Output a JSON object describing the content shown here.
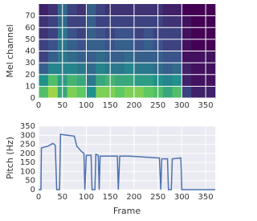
{
  "chart_data": [
    {
      "type": "heatmap",
      "ylabel": "Mel channel",
      "colormap": "viridis",
      "grid": true,
      "xbins": [
        0,
        20,
        40,
        60,
        80,
        100,
        120,
        140,
        160,
        180,
        200,
        220,
        240,
        260,
        280,
        300,
        320,
        340,
        360,
        370
      ],
      "ybins": [
        0,
        10,
        20,
        30,
        40,
        50,
        60,
        70,
        80
      ],
      "z": [
        [
          0.7,
          0.85,
          0.6,
          0.8,
          0.75,
          0.5,
          0.8,
          0.8,
          0.75,
          0.8,
          0.8,
          0.75,
          0.7,
          0.6,
          0.7,
          0.2,
          0.1,
          0.1,
          0.1
        ],
        [
          0.5,
          0.7,
          0.55,
          0.65,
          0.6,
          0.4,
          0.6,
          0.65,
          0.6,
          0.6,
          0.55,
          0.55,
          0.5,
          0.45,
          0.5,
          0.1,
          0.05,
          0.05,
          0.05
        ],
        [
          0.3,
          0.45,
          0.45,
          0.45,
          0.4,
          0.35,
          0.45,
          0.4,
          0.4,
          0.45,
          0.4,
          0.4,
          0.35,
          0.3,
          0.35,
          0.1,
          0.05,
          0.05,
          0.05
        ],
        [
          0.2,
          0.3,
          0.4,
          0.35,
          0.3,
          0.3,
          0.35,
          0.3,
          0.3,
          0.35,
          0.3,
          0.3,
          0.3,
          0.25,
          0.25,
          0.05,
          0.05,
          0.05,
          0.05
        ],
        [
          0.2,
          0.25,
          0.4,
          0.3,
          0.25,
          0.3,
          0.3,
          0.25,
          0.3,
          0.3,
          0.25,
          0.3,
          0.25,
          0.2,
          0.2,
          0.05,
          0,
          0,
          0
        ],
        [
          0.15,
          0.2,
          0.4,
          0.25,
          0.2,
          0.3,
          0.25,
          0.2,
          0.25,
          0.25,
          0.2,
          0.25,
          0.2,
          0.2,
          0.2,
          0.05,
          0,
          0,
          0
        ],
        [
          0.15,
          0.2,
          0.35,
          0.2,
          0.2,
          0.3,
          0.2,
          0.2,
          0.2,
          0.2,
          0.2,
          0.2,
          0.2,
          0.15,
          0.15,
          0.05,
          0,
          0,
          0
        ],
        [
          0.1,
          0.15,
          0.35,
          0.2,
          0.15,
          0.3,
          0.2,
          0.15,
          0.15,
          0.15,
          0.15,
          0.15,
          0.15,
          0.1,
          0.1,
          0,
          0,
          0,
          0
        ]
      ],
      "xlim": [
        0,
        370
      ],
      "ylim": [
        0,
        80
      ],
      "xticks": [
        0,
        50,
        100,
        150,
        200,
        250,
        300,
        350
      ],
      "yticks": [
        0,
        10,
        20,
        30,
        40,
        50,
        60,
        70
      ]
    },
    {
      "type": "line",
      "xlabel": "Frame",
      "ylabel": "Pitch (Hz)",
      "color": "#4c72b0",
      "grid": true,
      "x": [
        0,
        5,
        6,
        20,
        30,
        35,
        38,
        44,
        46,
        60,
        75,
        80,
        90,
        95,
        97,
        100,
        110,
        112,
        118,
        120,
        125,
        127,
        129,
        140,
        165,
        167,
        170,
        190,
        220,
        250,
        253,
        256,
        258,
        270,
        272,
        278,
        280,
        298,
        300,
        370
      ],
      "y": [
        0,
        0,
        230,
        240,
        255,
        245,
        0,
        0,
        305,
        300,
        295,
        240,
        210,
        200,
        0,
        190,
        190,
        0,
        0,
        195,
        190,
        0,
        185,
        185,
        185,
        0,
        185,
        185,
        180,
        175,
        175,
        0,
        170,
        170,
        0,
        0,
        170,
        175,
        0,
        0
      ],
      "xlim": [
        0,
        370
      ],
      "ylim": [
        0,
        350
      ],
      "xticks": [
        0,
        50,
        100,
        150,
        200,
        250,
        300,
        350
      ],
      "yticks": [
        0,
        50,
        100,
        150,
        200,
        250,
        300,
        350
      ]
    }
  ]
}
